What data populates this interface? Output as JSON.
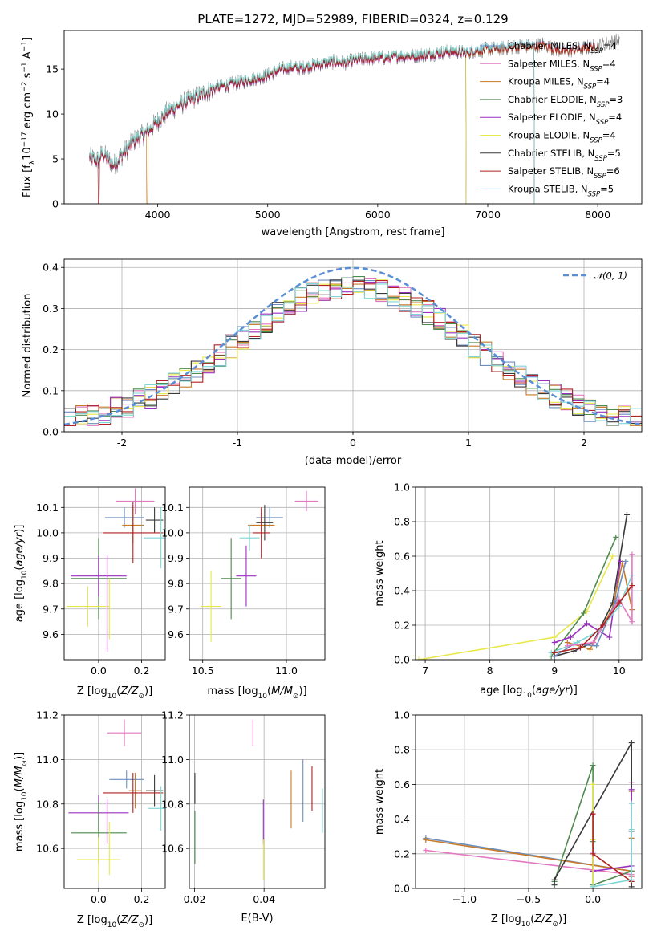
{
  "figure": {
    "title": "PLATE=1272, MJD=52989, FIBERID=0324, z=0.129"
  },
  "chart_data": [
    {
      "id": "spectrum",
      "type": "line",
      "xlabel": "wavelength [Angstrom, rest frame]",
      "ylabel": "Flux [f_λ10^-17 erg cm^-2 s^-1 A^-1]",
      "xlim": [
        3150,
        8400
      ],
      "ylim": [
        0,
        19.3
      ],
      "xticks": [
        4000,
        5000,
        6000,
        7000,
        8000
      ],
      "yticks": [
        0,
        5,
        10,
        15
      ],
      "grid": false,
      "legend_position": "top-right",
      "observed": {
        "color": "#808080",
        "x": [
          3380,
          3450,
          3500,
          3600,
          3700,
          3800,
          3900,
          4000,
          4100,
          4200,
          4300,
          4400,
          4500,
          4600,
          4700,
          4800,
          4900,
          5000,
          5100,
          5200,
          5300,
          5400,
          5500,
          5600,
          5700,
          5800,
          5900,
          6000,
          6100,
          6200,
          6300,
          6400,
          6500,
          6600,
          6700,
          6800,
          6900,
          7000,
          7100,
          7200,
          7300,
          7400,
          7500,
          7600,
          7700,
          7800,
          7900,
          8000,
          8100,
          8200
        ],
        "y": [
          5.2,
          4.8,
          5.6,
          4.3,
          5.8,
          7.2,
          7.9,
          9.2,
          10.4,
          11.0,
          11.6,
          12.2,
          12.8,
          13.1,
          13.4,
          13.7,
          14.0,
          14.3,
          14.9,
          15.2,
          15.1,
          15.4,
          15.6,
          15.8,
          15.7,
          16.0,
          16.1,
          16.3,
          16.2,
          16.5,
          16.4,
          16.6,
          16.7,
          16.9,
          17.0,
          16.8,
          17.1,
          17.2,
          17.3,
          17.4,
          17.6,
          17.5,
          17.8,
          17.3,
          17.0,
          17.2,
          17.4,
          17.6,
          17.9,
          18.2
        ]
      },
      "series": [
        {
          "name": "Chabrier MILES, N_SSP=4",
          "label_main": "Chabrier MILES, N",
          "label_sub": "SSP",
          "label_tail": "=4",
          "color": "#6c8ebf",
          "cut_x": 3470,
          "cut_side": "left",
          "offset": 0.1
        },
        {
          "name": "Salpeter MILES, N_SSP=4",
          "label_main": "Salpeter MILES, N",
          "label_sub": "SSP",
          "label_tail": "=4",
          "color": "#e377c2",
          "cut_x": 7420,
          "cut_side": "right",
          "offset": 0.2
        },
        {
          "name": "Kroupa MILES, N_SSP=4",
          "label_main": "Kroupa MILES, N",
          "label_sub": "SSP",
          "label_tail": "=4",
          "color": "#c77a28",
          "cut_x": 3910,
          "cut_side": "left",
          "offset": -0.1
        },
        {
          "name": "Chabrier ELODIE, N_SSP=3",
          "label_main": "Chabrier ELODIE, N",
          "label_sub": "SSP",
          "label_tail": "=3",
          "color": "#4f8a4f",
          "cut_x": 6800,
          "cut_side": "right",
          "offset": 0.0
        },
        {
          "name": "Salpeter ELODIE, N_SSP=4",
          "label_main": "Salpeter ELODIE, N",
          "label_sub": "SSP",
          "label_tail": "=4",
          "color": "#9b30c0",
          "cut_x": 6800,
          "cut_side": "right",
          "offset": -0.15
        },
        {
          "name": "Kroupa ELODIE, N_SSP=4",
          "label_main": "Kroupa ELODIE, N",
          "label_sub": "SSP",
          "label_tail": "=4",
          "color": "#e8e84a",
          "cut_x": 6800,
          "cut_side": "right",
          "offset": 0.15
        },
        {
          "name": "Chabrier STELIB, N_SSP=5",
          "label_main": "Chabrier STELIB, N",
          "label_sub": "SSP",
          "label_tail": "=5",
          "color": "#3a3a3a",
          "cut_x": 7420,
          "cut_side": "right",
          "offset": 0.05
        },
        {
          "name": "Salpeter STELIB, N_SSP=6",
          "label_main": "Salpeter STELIB, N",
          "label_sub": "SSP",
          "label_tail": "=6",
          "color": "#b22222",
          "cut_x": 3470,
          "cut_side": "left",
          "offset": -0.05
        },
        {
          "name": "Kroupa STELIB, N_SSP=5",
          "label_main": "Kroupa STELIB, N",
          "label_sub": "SSP",
          "label_tail": "=5",
          "color": "#7fd6d6",
          "cut_x": 7420,
          "cut_side": "right",
          "offset": 0.25
        }
      ]
    },
    {
      "id": "residuals",
      "type": "line",
      "xlabel": "(data-model)/error",
      "ylabel": "Normed distribution",
      "xlim": [
        -2.5,
        2.5
      ],
      "ylim": [
        0,
        0.42
      ],
      "xticks": [
        -2,
        -1,
        0,
        1,
        2
      ],
      "yticks": [
        0.0,
        0.1,
        0.2,
        0.3,
        0.4
      ],
      "grid": true,
      "legend_position": "top-right",
      "gaussian": {
        "name": "N(0,1)",
        "mean": 0,
        "sigma": 1,
        "color": "#5a8fd6"
      },
      "bin_width": 0.1,
      "series_colors": [
        "#6c8ebf",
        "#e377c2",
        "#c77a28",
        "#4f8a4f",
        "#9b30c0",
        "#e8e84a",
        "#3a3a3a",
        "#b22222",
        "#7fd6d6"
      ]
    },
    {
      "id": "age_vs_Z",
      "type": "scatter",
      "xlabel": "Z [log10(Z/Z_sun)]",
      "ylabel": "age [log10(age/yr)]",
      "xlim": [
        -0.16,
        0.31
      ],
      "ylim": [
        9.5,
        10.18
      ],
      "xticks": [
        0.0,
        0.2
      ],
      "yticks": [
        9.6,
        9.7,
        9.8,
        9.9,
        10.0,
        10.1
      ],
      "grid": true,
      "points": [
        {
          "color": "#e377c2",
          "x": 0.17,
          "xerr": 0.09,
          "y": 10.125,
          "yerr": 0.05
        },
        {
          "color": "#6c8ebf",
          "x": 0.12,
          "xerr": 0.09,
          "y": 10.06,
          "yerr": 0.04
        },
        {
          "color": "#3a3a3a",
          "x": 0.26,
          "xerr": 0.04,
          "y": 10.05,
          "yerr": 0.05
        },
        {
          "color": "#c77a28",
          "x": 0.16,
          "xerr": 0.05,
          "y": 10.03,
          "yerr": 0.07
        },
        {
          "color": "#b22222",
          "x": 0.16,
          "xerr": 0.14,
          "y": 10.0,
          "yerr": 0.12
        },
        {
          "color": "#7fd6d6",
          "x": 0.29,
          "xerr": 0.08,
          "y": 9.98,
          "yerr": 0.12
        },
        {
          "color": "#4f8a4f",
          "x": 0.0,
          "xerr": 0.13,
          "y": 9.82,
          "yerr": 0.16
        },
        {
          "color": "#9b30c0",
          "x": 0.0,
          "xerr": 0.13,
          "y": 9.83,
          "yerr": 0.08
        },
        {
          "color": "#e8e84a",
          "x": -0.05,
          "xerr": 0.1,
          "y": 9.71,
          "yerr": 0.08
        },
        {
          "color": "#9b30c0",
          "x": 0.04,
          "xerr": 0.0,
          "y": 9.72,
          "yerr": 0.19
        },
        {
          "color": "#e8e84a",
          "x": 0.05,
          "xerr": 0.0,
          "y": 9.7,
          "yerr": 0.12
        }
      ]
    },
    {
      "id": "age_vs_mass",
      "type": "scatter",
      "xlabel": "mass [log10(M/M_sun)]",
      "ylabel": "",
      "xlim": [
        10.42,
        11.23
      ],
      "ylim": [
        9.5,
        10.18
      ],
      "xticks": [
        10.5,
        11.0
      ],
      "yticks": [
        9.6,
        9.7,
        9.8,
        9.9,
        10.0,
        10.1
      ],
      "grid": true,
      "points": [
        {
          "color": "#e377c2",
          "x": 11.12,
          "xerr": 0.07,
          "y": 10.125,
          "yerr": 0.04
        },
        {
          "color": "#6c8ebf",
          "x": 10.9,
          "xerr": 0.08,
          "y": 10.06,
          "yerr": 0.04
        },
        {
          "color": "#c77a28",
          "x": 10.85,
          "xerr": 0.08,
          "y": 10.03,
          "yerr": 0.05
        },
        {
          "color": "#3a3a3a",
          "x": 10.87,
          "xerr": 0.05,
          "y": 10.04,
          "yerr": 0.07
        },
        {
          "color": "#b22222",
          "x": 10.85,
          "xerr": 0.05,
          "y": 10.0,
          "yerr": 0.1
        },
        {
          "color": "#7fd6d6",
          "x": 10.78,
          "xerr": 0.06,
          "y": 9.98,
          "yerr": 0.05
        },
        {
          "color": "#4f8a4f",
          "x": 10.67,
          "xerr": 0.06,
          "y": 9.82,
          "yerr": 0.16
        },
        {
          "color": "#9b30c0",
          "x": 10.76,
          "xerr": 0.06,
          "y": 9.83,
          "yerr": 0.12
        },
        {
          "color": "#e8e84a",
          "x": 10.55,
          "xerr": 0.06,
          "y": 9.71,
          "yerr": 0.14
        }
      ]
    },
    {
      "id": "mass_weight_vs_age",
      "type": "line",
      "xlabel": "age [log10(age/yr)]",
      "ylabel": "mass weight",
      "xlim": [
        6.85,
        10.35
      ],
      "ylim": [
        0,
        1.0
      ],
      "xticks": [
        7,
        8,
        9,
        10
      ],
      "yticks": [
        0.0,
        0.2,
        0.4,
        0.6,
        0.8,
        1.0
      ],
      "grid": true,
      "series": [
        {
          "color": "#e8e84a",
          "x": [
            6.9,
            9.0,
            9.5,
            9.9
          ],
          "y": [
            0.0,
            0.13,
            0.28,
            0.6
          ]
        },
        {
          "color": "#4f8a4f",
          "x": [
            8.95,
            9.45,
            9.95
          ],
          "y": [
            0.02,
            0.27,
            0.71
          ]
        },
        {
          "color": "#3a3a3a",
          "x": [
            9.0,
            9.3,
            9.6,
            9.9,
            10.12
          ],
          "y": [
            0.02,
            0.05,
            0.1,
            0.33,
            0.84
          ]
        },
        {
          "color": "#9b30c0",
          "x": [
            9.0,
            9.25,
            9.5,
            9.85,
            10.02
          ],
          "y": [
            0.1,
            0.13,
            0.21,
            0.13,
            0.57
          ]
        },
        {
          "color": "#c77a28",
          "x": [
            9.2,
            9.55,
            9.9,
            10.05,
            10.2
          ],
          "y": [
            0.1,
            0.06,
            0.3,
            0.56,
            0.29
          ]
        },
        {
          "color": "#6c8ebf",
          "x": [
            9.0,
            9.3,
            9.65,
            9.95,
            10.1
          ],
          "y": [
            0.02,
            0.09,
            0.08,
            0.34,
            0.57
          ]
        },
        {
          "color": "#7fd6d6",
          "x": [
            8.95,
            9.35,
            9.7,
            10.0,
            10.2
          ],
          "y": [
            0.04,
            0.1,
            0.17,
            0.31,
            0.49
          ]
        },
        {
          "color": "#e377c2",
          "x": [
            9.2,
            9.6,
            10.0,
            10.2,
            10.2
          ],
          "y": [
            0.08,
            0.1,
            0.35,
            0.22,
            0.61
          ]
        },
        {
          "color": "#b22222",
          "x": [
            9.0,
            9.4,
            9.75,
            10.0,
            10.2
          ],
          "y": [
            0.04,
            0.07,
            0.2,
            0.33,
            0.43
          ]
        }
      ]
    },
    {
      "id": "mass_vs_Z",
      "type": "scatter",
      "xlabel": "Z [log10(Z/Z_sun)]",
      "ylabel": "mass [log10(M/M_sun)]",
      "xlim": [
        -0.16,
        0.31
      ],
      "ylim": [
        10.42,
        11.2
      ],
      "xticks": [
        0.0,
        0.2
      ],
      "yticks": [
        10.6,
        10.8,
        11.0,
        11.2
      ],
      "grid": true,
      "points": [
        {
          "color": "#e377c2",
          "x": 0.12,
          "xerr": 0.08,
          "y": 11.12,
          "yerr": 0.06
        },
        {
          "color": "#6c8ebf",
          "x": 0.13,
          "xerr": 0.08,
          "y": 10.91,
          "yerr": 0.04
        },
        {
          "color": "#3a3a3a",
          "x": 0.26,
          "xerr": 0.04,
          "y": 10.86,
          "yerr": 0.07
        },
        {
          "color": "#c77a28",
          "x": 0.17,
          "xerr": 0.03,
          "y": 10.86,
          "yerr": 0.08
        },
        {
          "color": "#b22222",
          "x": 0.16,
          "xerr": 0.14,
          "y": 10.85,
          "yerr": 0.09
        },
        {
          "color": "#7fd6d6",
          "x": 0.29,
          "xerr": 0.06,
          "y": 10.78,
          "yerr": 0.1
        },
        {
          "color": "#9b30c0",
          "x": 0.0,
          "xerr": 0.14,
          "y": 10.76,
          "yerr": 0.08
        },
        {
          "color": "#4f8a4f",
          "x": 0.0,
          "xerr": 0.13,
          "y": 10.67,
          "yerr": 0.14
        },
        {
          "color": "#e8e84a",
          "x": 0.0,
          "xerr": 0.1,
          "y": 10.55,
          "yerr": 0.1
        },
        {
          "color": "#9b30c0",
          "x": 0.04,
          "xerr": 0.0,
          "y": 10.72,
          "yerr": 0.1
        },
        {
          "color": "#e8e84a",
          "x": 0.05,
          "xerr": 0.0,
          "y": 10.6,
          "yerr": 0.12
        }
      ]
    },
    {
      "id": "mass_vs_EBV",
      "type": "scatter",
      "xlabel": "E(B-V)",
      "ylabel": "",
      "xlim": [
        0.0185,
        0.0575
      ],
      "ylim": [
        10.42,
        11.2
      ],
      "xticks": [
        0.02,
        0.04
      ],
      "yticks": [
        10.6,
        10.8,
        11.0,
        11.2
      ],
      "grid": true,
      "points": [
        {
          "color": "#e377c2",
          "x": 0.0368,
          "xerr": 0.0,
          "y": 11.12,
          "yerr": 0.06
        },
        {
          "color": "#3a3a3a",
          "x": 0.0201,
          "xerr": 0.0,
          "y": 10.87,
          "yerr": 0.07
        },
        {
          "color": "#4f8a4f",
          "x": 0.0201,
          "xerr": 0.0,
          "y": 10.65,
          "yerr": 0.12
        },
        {
          "color": "#9b30c0",
          "x": 0.0398,
          "xerr": 0.0,
          "y": 10.72,
          "yerr": 0.1
        },
        {
          "color": "#e8e84a",
          "x": 0.0398,
          "xerr": 0.0,
          "y": 10.55,
          "yerr": 0.09
        },
        {
          "color": "#c77a28",
          "x": 0.0478,
          "xerr": 0.0,
          "y": 10.82,
          "yerr": 0.13
        },
        {
          "color": "#6c8ebf",
          "x": 0.0512,
          "xerr": 0.0,
          "y": 10.86,
          "yerr": 0.14
        },
        {
          "color": "#b22222",
          "x": 0.0538,
          "xerr": 0.0,
          "y": 10.87,
          "yerr": 0.1
        },
        {
          "color": "#7fd6d6",
          "x": 0.0568,
          "xerr": 0.0,
          "y": 10.77,
          "yerr": 0.1
        }
      ]
    },
    {
      "id": "mass_weight_vs_Z",
      "type": "line",
      "xlabel": "Z [log10(Z/Z_sun)]",
      "ylabel": "mass weight",
      "xlim": [
        -1.38,
        0.38
      ],
      "ylim": [
        0,
        1.0
      ],
      "xticks": [
        -1.0,
        -0.5,
        0.0
      ],
      "yticks": [
        0.0,
        0.2,
        0.4,
        0.6,
        0.8,
        1.0
      ],
      "grid": true,
      "series": [
        {
          "color": "#6c8ebf",
          "x": [
            -1.3,
            0.3,
            0.3
          ],
          "y": [
            0.29,
            0.1,
            0.57
          ]
        },
        {
          "color": "#c77a28",
          "x": [
            -1.3,
            0.3,
            0.3,
            0.3
          ],
          "y": [
            0.28,
            0.1,
            0.56,
            0.29
          ]
        },
        {
          "color": "#e377c2",
          "x": [
            -1.3,
            0.3,
            0.3,
            0.3
          ],
          "y": [
            0.22,
            0.08,
            0.61,
            0.07
          ]
        },
        {
          "color": "#4f8a4f",
          "x": [
            -0.3,
            0.0,
            0.0,
            0.0,
            0.3
          ],
          "y": [
            0.04,
            0.71,
            0.27,
            0.02,
            0.1
          ]
        },
        {
          "color": "#3a3a3a",
          "x": [
            -0.3,
            -0.3,
            0.3,
            0.3,
            0.3
          ],
          "y": [
            0.02,
            0.05,
            0.84,
            0.33,
            0.01
          ]
        },
        {
          "color": "#9b30c0",
          "x": [
            0.0,
            0.0,
            0.3,
            0.3
          ],
          "y": [
            0.21,
            0.1,
            0.13,
            0.57
          ]
        },
        {
          "color": "#e8e84a",
          "x": [
            0.0,
            0.0,
            0.0
          ],
          "y": [
            0.6,
            0.28,
            0.01
          ]
        },
        {
          "color": "#b22222",
          "x": [
            0.0,
            0.0,
            0.3,
            0.3
          ],
          "y": [
            0.43,
            0.2,
            0.04,
            0.07
          ]
        },
        {
          "color": "#7fd6d6",
          "x": [
            0.0,
            0.3,
            0.3,
            0.3
          ],
          "y": [
            0.01,
            0.05,
            0.49,
            0.34
          ]
        }
      ]
    }
  ],
  "text": {
    "gauss_legend": "𝒩(0, 1)"
  }
}
